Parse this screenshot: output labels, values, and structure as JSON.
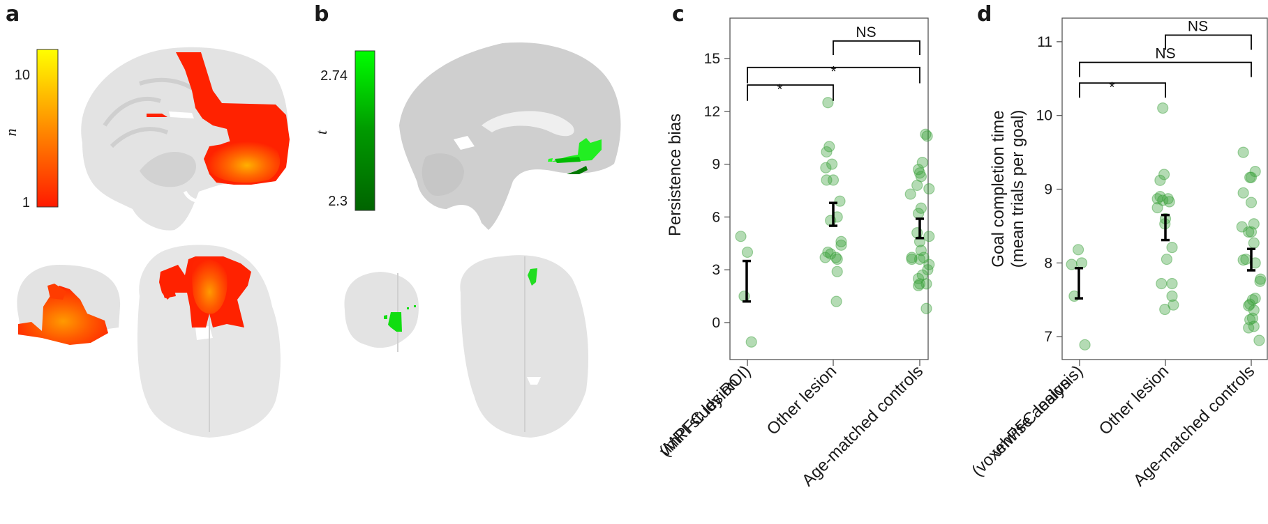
{
  "panels": {
    "a": {
      "letter": "a",
      "colorbar": {
        "title": "n",
        "max_label": "10",
        "min_label": "1",
        "colors": [
          "#ff1a00",
          "#ff8c00",
          "#ffff00"
        ]
      },
      "views": [
        "sagittal",
        "coronal",
        "axial"
      ],
      "overlay_colors": [
        "#ff2200",
        "#ff5a00",
        "#ffa500"
      ]
    },
    "b": {
      "letter": "b",
      "colorbar": {
        "title": "t",
        "max_label": "2.74",
        "min_label": "2.3",
        "colors": [
          "#006400",
          "#009900",
          "#00ff00"
        ]
      },
      "views": [
        "sagittal",
        "coronal",
        "axial"
      ],
      "overlay_colors": [
        "#00dd00",
        "#22ff22",
        "#007a00"
      ]
    },
    "c": {
      "letter": "c"
    },
    "d": {
      "letter": "d"
    }
  },
  "chart_data": [
    {
      "panel": "c",
      "type": "scatter",
      "title": "",
      "xlabel": "",
      "ylabel": "Persistence bias",
      "ylim": [
        -2.1,
        17.3
      ],
      "yticks": [
        0,
        3,
        6,
        9,
        12,
        15
      ],
      "grid": false,
      "categories": [
        "vmPFC lesion\n(MRI study ROI)",
        "Other lesion",
        "Age-matched controls"
      ],
      "category_lines": [
        [
          "vmPFC lesion",
          "(MRI study ROI)"
        ],
        [
          "Other lesion"
        ],
        [
          "Age-matched controls"
        ]
      ],
      "point_color": "#3aa03a",
      "series": [
        {
          "name": "vmPFC lesion (MRI study ROI)",
          "points": [
            [
              -0.25,
              4.9
            ],
            [
              0.0,
              4.0
            ],
            [
              -0.12,
              1.5
            ],
            [
              0.15,
              -1.1
            ]
          ],
          "mean_sem": [
            1.2,
            3.5
          ]
        },
        {
          "name": "Other lesion",
          "points": [
            [
              -0.2,
              12.5
            ],
            [
              -0.15,
              10.0
            ],
            [
              -0.25,
              9.7
            ],
            [
              -0.05,
              9.0
            ],
            [
              -0.28,
              8.8
            ],
            [
              -0.25,
              8.1
            ],
            [
              0.0,
              8.1
            ],
            [
              0.25,
              6.9
            ],
            [
              -0.1,
              5.8
            ],
            [
              0.15,
              6.0
            ],
            [
              0.3,
              4.6
            ],
            [
              0.3,
              4.4
            ],
            [
              -0.2,
              4.0
            ],
            [
              -0.1,
              3.9
            ],
            [
              -0.3,
              3.7
            ],
            [
              0.1,
              3.7
            ],
            [
              0.15,
              3.6
            ],
            [
              0.15,
              2.9
            ],
            [
              0.12,
              1.2
            ]
          ],
          "mean_sem": [
            5.5,
            6.8
          ]
        },
        {
          "name": "Age-matched controls",
          "points": [
            [
              0.22,
              10.7
            ],
            [
              0.28,
              10.6
            ],
            [
              0.1,
              9.1
            ],
            [
              -0.05,
              8.7
            ],
            [
              0.0,
              8.5
            ],
            [
              0.05,
              8.3
            ],
            [
              -0.1,
              7.8
            ],
            [
              0.35,
              7.6
            ],
            [
              -0.35,
              7.3
            ],
            [
              0.05,
              6.5
            ],
            [
              -0.05,
              6.2
            ],
            [
              -0.1,
              5.1
            ],
            [
              0.35,
              4.9
            ],
            [
              0.0,
              4.6
            ],
            [
              0.05,
              4.1
            ],
            [
              -0.3,
              3.7
            ],
            [
              -0.3,
              3.6
            ],
            [
              0.15,
              3.7
            ],
            [
              0.0,
              3.6
            ],
            [
              0.35,
              3.3
            ],
            [
              0.3,
              3.0
            ],
            [
              0.1,
              2.7
            ],
            [
              -0.05,
              2.5
            ],
            [
              0.0,
              2.2
            ],
            [
              0.25,
              2.2
            ],
            [
              -0.05,
              2.1
            ],
            [
              0.25,
              0.8
            ]
          ],
          "mean_sem": [
            4.8,
            5.9
          ]
        }
      ],
      "significance": [
        {
          "from": 0,
          "to": 1,
          "label": "*",
          "y": 13.5,
          "drop": 0.9
        },
        {
          "from": 0,
          "to": 2,
          "label": "*",
          "y": 14.5,
          "drop": 0.9
        },
        {
          "from": 1,
          "to": 2,
          "label": "NS",
          "y": 16.0,
          "drop": 0.8
        }
      ]
    },
    {
      "panel": "d",
      "type": "scatter",
      "title": "",
      "xlabel": "",
      "ylabel": "Goal completion time\n(mean trials per goal)",
      "ylabel_lines": [
        "Goal completion time",
        "(mean trials per goal)"
      ],
      "ylim": [
        6.69,
        11.32
      ],
      "yticks": [
        7,
        8,
        9,
        10,
        11
      ],
      "grid": false,
      "categories": [
        "vmPFC lesion\n(voxelwise analysis)",
        "Other lesion",
        "Age-matched controls"
      ],
      "category_lines": [
        [
          "vmPFC lesion",
          "(voxelwise analysis)"
        ],
        [
          "Other lesion"
        ],
        [
          "Age-matched controls"
        ]
      ],
      "point_color": "#3aa03a",
      "series": [
        {
          "name": "vmPFC lesion (voxelwise analysis)",
          "points": [
            [
              -0.05,
              8.18
            ],
            [
              -0.3,
              7.98
            ],
            [
              0.08,
              8.0
            ],
            [
              -0.2,
              7.55
            ],
            [
              0.2,
              6.89
            ]
          ],
          "mean_sem": [
            7.52,
            7.93
          ]
        },
        {
          "name": "Other lesion",
          "points": [
            [
              -0.1,
              10.1
            ],
            [
              -0.05,
              9.2
            ],
            [
              -0.2,
              9.12
            ],
            [
              -0.2,
              8.9
            ],
            [
              -0.3,
              8.87
            ],
            [
              -0.1,
              8.85
            ],
            [
              0.1,
              8.87
            ],
            [
              0.15,
              8.83
            ],
            [
              -0.3,
              8.75
            ],
            [
              0.0,
              8.6
            ],
            [
              -0.02,
              8.53
            ],
            [
              0.25,
              8.21
            ],
            [
              0.05,
              8.05
            ],
            [
              -0.15,
              7.72
            ],
            [
              0.25,
              7.72
            ],
            [
              0.25,
              7.55
            ],
            [
              0.3,
              7.43
            ],
            [
              -0.02,
              7.37
            ]
          ],
          "mean_sem": [
            8.31,
            8.65
          ]
        },
        {
          "name": "Age-matched controls",
          "points": [
            [
              -0.3,
              9.5
            ],
            [
              0.15,
              9.24
            ],
            [
              -0.05,
              9.16
            ],
            [
              0.0,
              9.16
            ],
            [
              -0.3,
              8.95
            ],
            [
              0.0,
              8.82
            ],
            [
              -0.35,
              8.49
            ],
            [
              0.1,
              8.53
            ],
            [
              -0.1,
              8.42
            ],
            [
              0.0,
              8.42
            ],
            [
              0.1,
              8.27
            ],
            [
              -0.3,
              8.04
            ],
            [
              -0.2,
              8.05
            ],
            [
              0.15,
              8.0
            ],
            [
              0.35,
              7.78
            ],
            [
              0.33,
              7.75
            ],
            [
              0.15,
              7.52
            ],
            [
              0.05,
              7.5
            ],
            [
              -0.05,
              7.44
            ],
            [
              -0.1,
              7.42
            ],
            [
              0.1,
              7.36
            ],
            [
              0.05,
              7.25
            ],
            [
              -0.05,
              7.23
            ],
            [
              0.1,
              7.14
            ],
            [
              -0.1,
              7.12
            ],
            [
              0.3,
              6.95
            ]
          ],
          "mean_sem": [
            7.9,
            8.19
          ]
        }
      ],
      "significance": [
        {
          "from": 0,
          "to": 1,
          "label": "*",
          "y": 10.44,
          "drop": 0.2
        },
        {
          "from": 0,
          "to": 2,
          "label": "NS",
          "y": 10.72,
          "drop": 0.2
        },
        {
          "from": 1,
          "to": 2,
          "label": "NS",
          "y": 11.09,
          "drop": 0.2
        }
      ]
    }
  ]
}
